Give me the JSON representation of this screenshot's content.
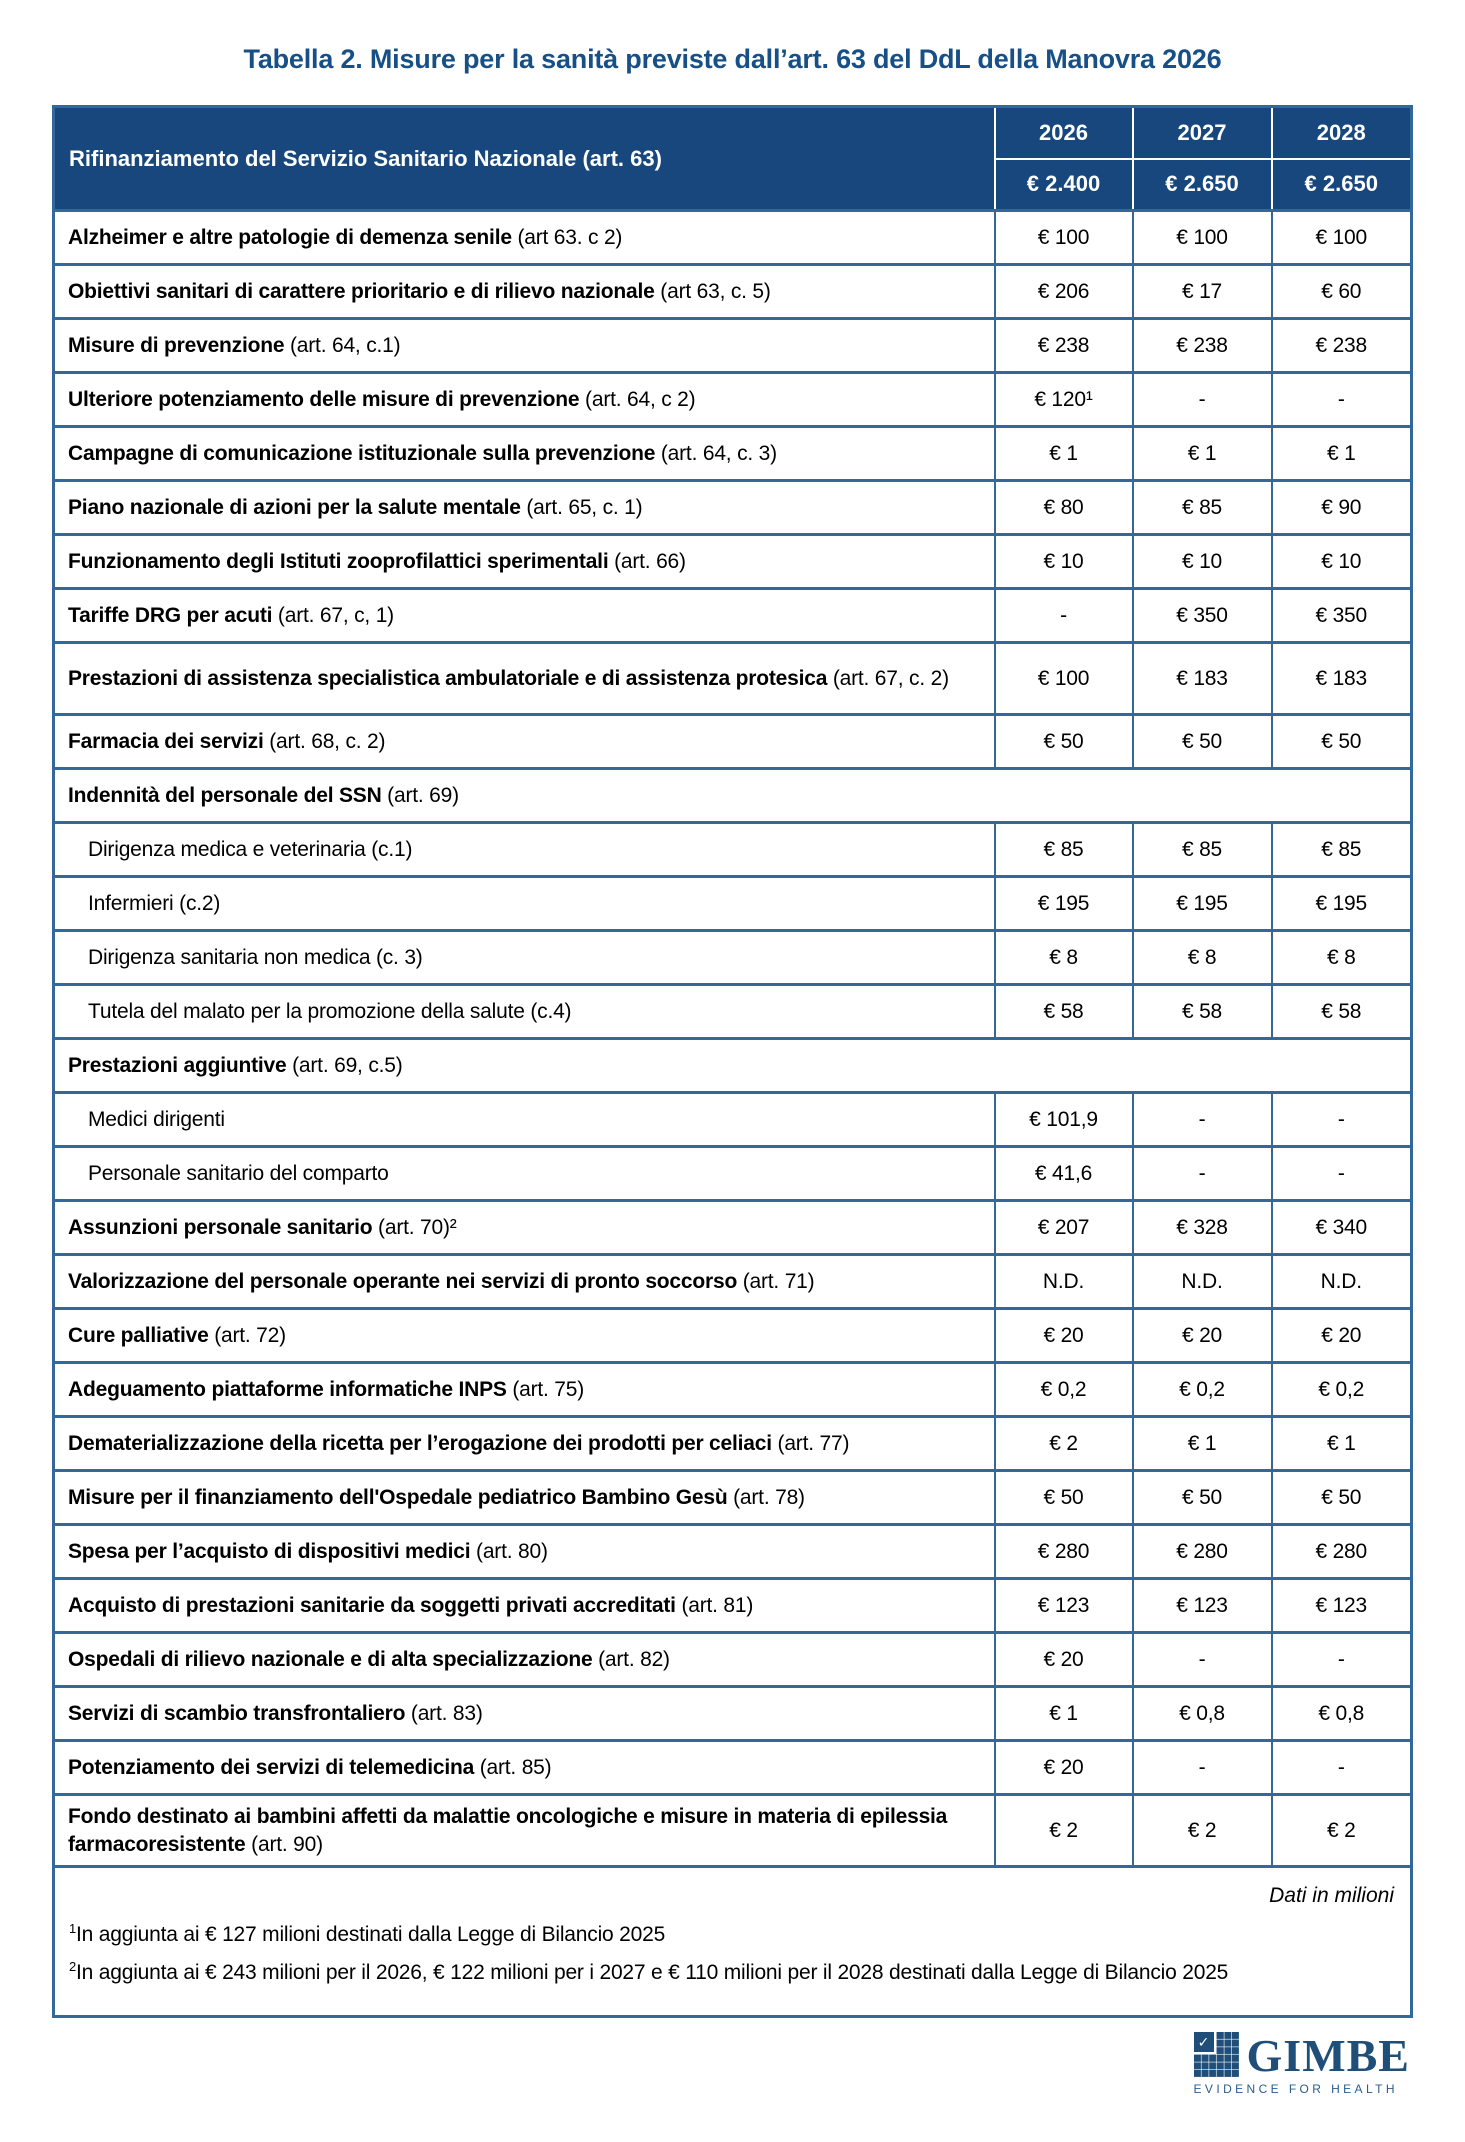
{
  "title": "Tabella 2. Misure per la sanità previste dall’art. 63 del DdL della Manovra 2026",
  "colors": {
    "header_bg": "#17477c",
    "grid_line": "#35689a",
    "title_text": "#174f87",
    "logo_blue": "#1f4e79"
  },
  "table": {
    "header": {
      "label": "Rifinanziamento del Servizio Sanitario Nazionale (art. 63)",
      "years": [
        "2026",
        "2027",
        "2028"
      ],
      "amounts": [
        "€ 2.400",
        "€ 2.650",
        "€ 2.650"
      ]
    },
    "rows": [
      {
        "type": "data",
        "label": "Alzheimer e altre patologie di demenza senile",
        "suffix": " (art 63. c 2)",
        "values": [
          "€ 100",
          "€ 100",
          "€ 100"
        ]
      },
      {
        "type": "data",
        "label": "Obiettivi sanitari di carattere prioritario e di rilievo nazionale",
        "suffix": " (art 63, c. 5)",
        "values": [
          "€ 206",
          "€ 17",
          "€ 60"
        ]
      },
      {
        "type": "data",
        "label": "Misure di prevenzione",
        "suffix": " (art. 64, c.1)",
        "values": [
          "€ 238",
          "€ 238",
          "€ 238"
        ]
      },
      {
        "type": "data",
        "label": "Ulteriore potenziamento delle misure di prevenzione",
        "suffix": " (art. 64, c 2)",
        "values": [
          "€ 120¹",
          "-",
          "-"
        ]
      },
      {
        "type": "data",
        "label": "Campagne di comunicazione istituzionale sulla prevenzione",
        "suffix": " (art. 64, c. 3)",
        "values": [
          "€ 1",
          "€ 1",
          "€ 1"
        ]
      },
      {
        "type": "data",
        "label": "Piano nazionale di azioni per la salute mentale",
        "suffix": " (art. 65, c. 1)",
        "values": [
          "€ 80",
          "€ 85",
          "€ 90"
        ]
      },
      {
        "type": "data",
        "label": "Funzionamento degli Istituti zooprofilattici sperimentali",
        "suffix": " (art. 66)",
        "values": [
          "€ 10",
          "€ 10",
          "€ 10"
        ]
      },
      {
        "type": "data",
        "label": "Tariffe DRG per acuti",
        "suffix": " (art. 67, c, 1)",
        "values": [
          "-",
          "€ 350",
          "€ 350"
        ]
      },
      {
        "type": "data",
        "tall": true,
        "label": "Prestazioni di assistenza specialistica ambulatoriale e di assistenza protesica",
        "suffix": " (art. 67, c. 2)",
        "values": [
          "€ 100",
          "€ 183",
          "€ 183"
        ]
      },
      {
        "type": "data",
        "label": "Farmacia dei servizi",
        "suffix": " (art. 68, c. 2)",
        "values": [
          "€ 50",
          "€ 50",
          "€ 50"
        ]
      },
      {
        "type": "section",
        "label": "Indennità del personale del SSN",
        "suffix": " (art. 69)"
      },
      {
        "type": "sub",
        "label": "Dirigenza medica e veterinaria (c.1)",
        "values": [
          "€ 85",
          "€ 85",
          "€ 85"
        ]
      },
      {
        "type": "sub",
        "label": "Infermieri (c.2)",
        "values": [
          "€ 195",
          "€ 195",
          "€ 195"
        ]
      },
      {
        "type": "sub",
        "label": "Dirigenza sanitaria non medica (c. 3)",
        "values": [
          "€ 8",
          "€ 8",
          "€ 8"
        ]
      },
      {
        "type": "sub",
        "label": "Tutela del malato per la promozione della salute (c.4)",
        "values": [
          "€ 58",
          "€ 58",
          "€ 58"
        ]
      },
      {
        "type": "section",
        "label": "Prestazioni aggiuntive",
        "suffix": " (art. 69, c.5)"
      },
      {
        "type": "sub",
        "label": "Medici dirigenti",
        "values": [
          "€ 101,9",
          "-",
          "-"
        ]
      },
      {
        "type": "sub",
        "label": "Personale sanitario del comparto",
        "values": [
          "€ 41,6",
          "-",
          "-"
        ]
      },
      {
        "type": "data",
        "label": "Assunzioni personale sanitario",
        "suffix": " (art. 70)²",
        "values": [
          "€ 207",
          "€ 328",
          "€ 340"
        ]
      },
      {
        "type": "data",
        "label": "Valorizzazione del personale operante nei servizi di pronto soccorso",
        "suffix": " (art. 71)",
        "values": [
          "N.D.",
          "N.D.",
          "N.D."
        ]
      },
      {
        "type": "data",
        "label": "Cure palliative",
        "suffix": " (art. 72)",
        "values": [
          "€ 20",
          "€ 20",
          "€ 20"
        ]
      },
      {
        "type": "data",
        "label": "Adeguamento piattaforme informatiche INPS",
        "suffix": " (art. 75)",
        "values": [
          "€ 0,2",
          "€ 0,2",
          "€ 0,2"
        ]
      },
      {
        "type": "data",
        "label": "Dematerializzazione della ricetta per l’erogazione dei prodotti per celiaci",
        "suffix": " (art. 77)",
        "values": [
          "€ 2",
          "€ 1",
          "€ 1"
        ]
      },
      {
        "type": "data",
        "label": "Misure per il finanziamento dell'Ospedale pediatrico Bambino Gesù",
        "suffix": " (art. 78)",
        "values": [
          "€ 50",
          "€ 50",
          "€ 50"
        ]
      },
      {
        "type": "data",
        "label": "Spesa per l’acquisto di dispositivi medici",
        "suffix": " (art. 80)",
        "values": [
          "€ 280",
          "€ 280",
          "€ 280"
        ]
      },
      {
        "type": "data",
        "label": "Acquisto di prestazioni sanitarie da soggetti privati accreditati",
        "suffix": " (art. 81)",
        "values": [
          "€ 123",
          "€ 123",
          "€ 123"
        ]
      },
      {
        "type": "data",
        "label": "Ospedali di rilievo nazionale e di alta specializzazione",
        "suffix": " (art. 82)",
        "values": [
          "€ 20",
          "-",
          "-"
        ]
      },
      {
        "type": "data",
        "label": "Servizi di scambio transfrontaliero",
        "suffix": " (art. 83)",
        "values": [
          "€ 1",
          "€ 0,8",
          "€ 0,8"
        ]
      },
      {
        "type": "data",
        "label": "Potenziamento dei servizi di telemedicina",
        "suffix": " (art. 85)",
        "values": [
          "€ 20",
          "-",
          "-"
        ]
      },
      {
        "type": "data",
        "tall": true,
        "label": "Fondo destinato ai bambini affetti da malattie oncologiche e misure in materia di epilessia farmacoresistente",
        "suffix": " (art. 90)",
        "values": [
          "€ 2",
          "€ 2",
          "€ 2"
        ]
      }
    ],
    "footer": {
      "data_note": "Dati in milioni",
      "footnotes": [
        {
          "sup": "1",
          "text": "In aggiunta ai € 127 milioni destinati dalla Legge di Bilancio 2025"
        },
        {
          "sup": "2",
          "text": "In aggiunta ai € 243 milioni per il 2026, € 122 milioni per i 2027 e € 110 milioni per il 2028 destinati dalla Legge di Bilancio 2025"
        }
      ]
    }
  },
  "logo": {
    "check_glyph": "✓",
    "name": "GIMBE",
    "tagline": "EVIDENCE FOR HEALTH"
  }
}
